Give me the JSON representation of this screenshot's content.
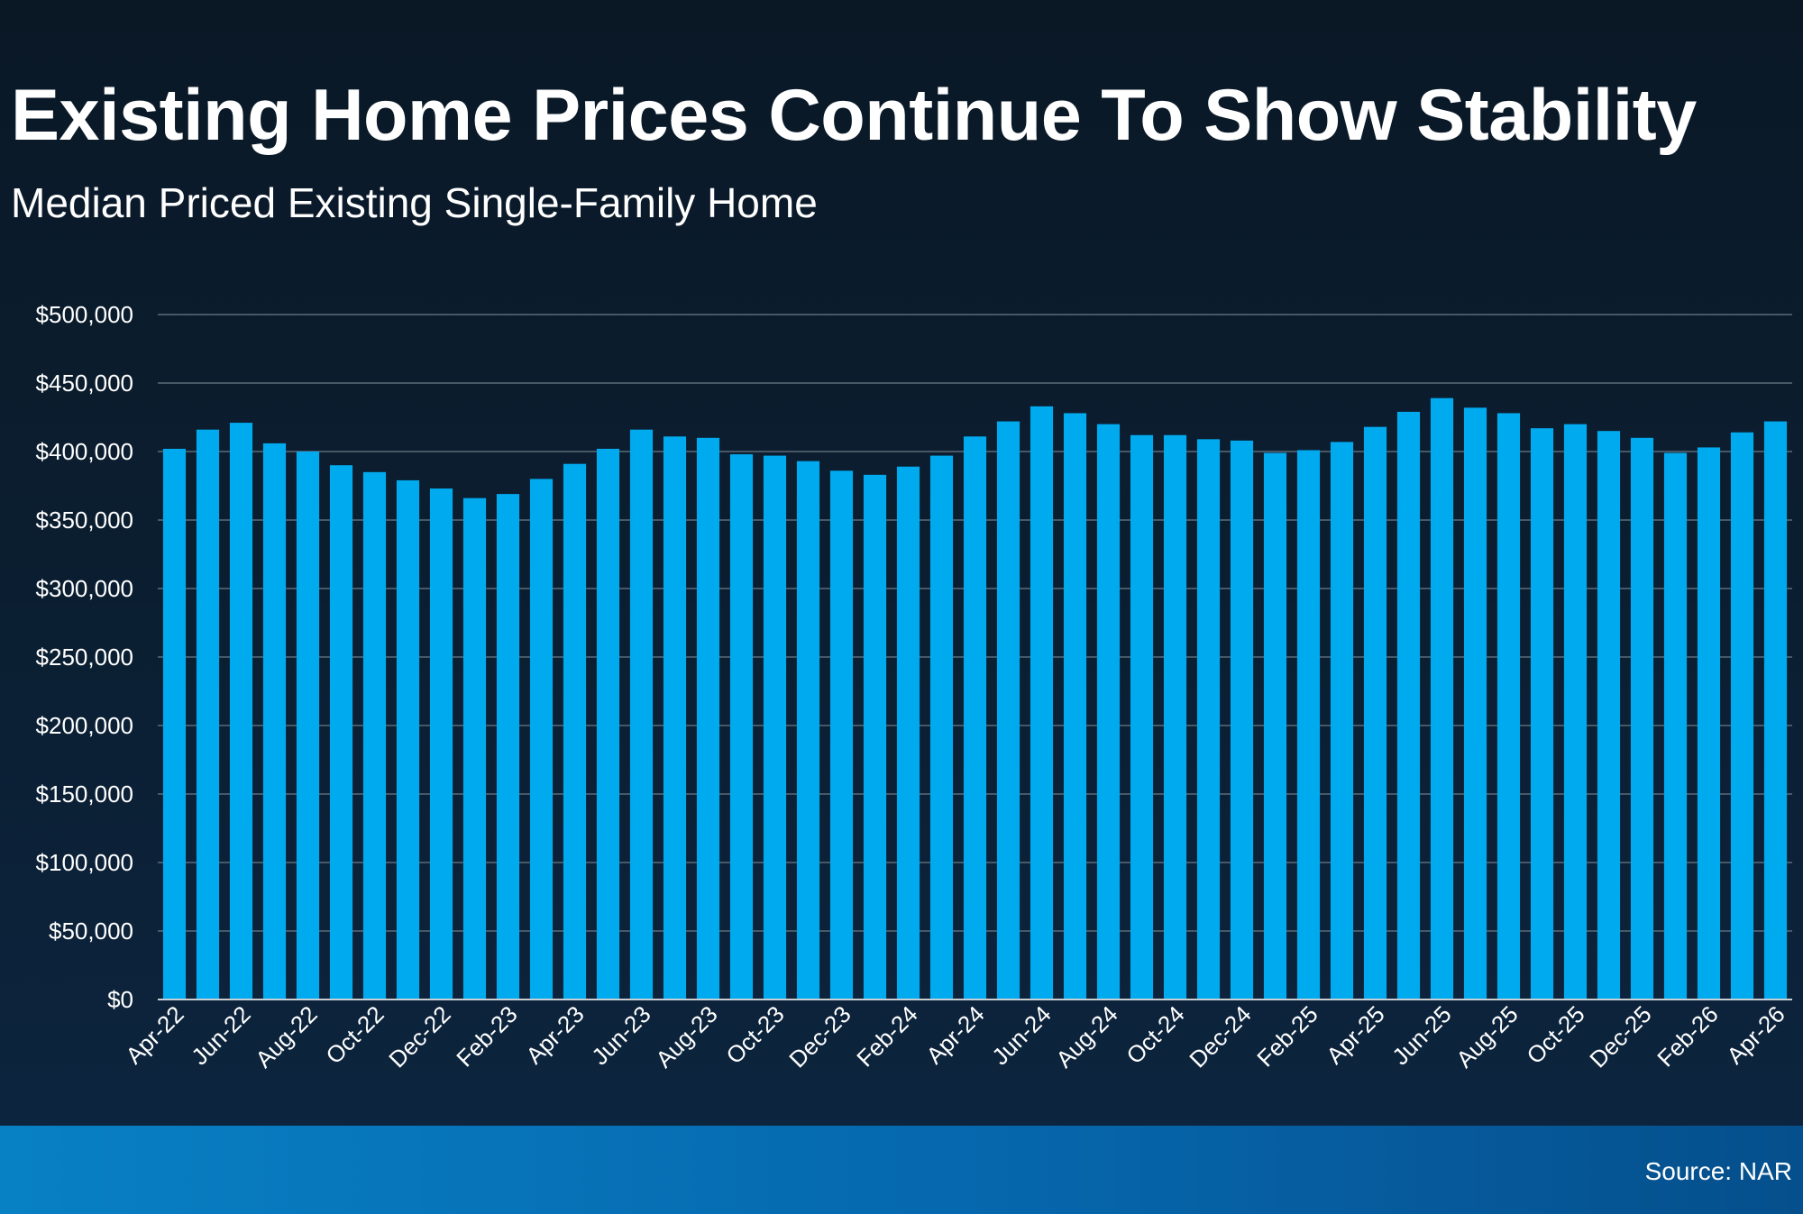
{
  "slide": {
    "title": "Existing Home Prices Continue To Show Stability",
    "subtitle": "Median Priced Existing Single-Family Home",
    "source": "Source: NAR"
  },
  "colors": {
    "bar": "#00aaef",
    "grid": "#5d6b78",
    "axis_line": "#c8ced4",
    "text": "#ffffff"
  },
  "chart_data": {
    "type": "bar",
    "title": "Existing Home Prices Continue To Show Stability",
    "subtitle": "Median Priced Existing Single-Family Home",
    "xlabel": "",
    "ylabel": "",
    "ylim": [
      0,
      500000
    ],
    "y_ticks": [
      0,
      50000,
      100000,
      150000,
      200000,
      250000,
      300000,
      350000,
      400000,
      450000,
      500000
    ],
    "y_tick_labels": [
      "$0",
      "$50,000",
      "$100,000",
      "$150,000",
      "$200,000",
      "$250,000",
      "$300,000",
      "$350,000",
      "$400,000",
      "$450,000",
      "$500,000"
    ],
    "grid": true,
    "categories": [
      "Apr-22",
      "May-22",
      "Jun-22",
      "Jul-22",
      "Aug-22",
      "Sep-22",
      "Oct-22",
      "Nov-22",
      "Dec-22",
      "Jan-23",
      "Feb-23",
      "Mar-23",
      "Apr-23",
      "May-23",
      "Jun-23",
      "Jul-23",
      "Aug-23",
      "Sep-23",
      "Oct-23",
      "Nov-23",
      "Dec-23",
      "Jan-24",
      "Feb-24",
      "Mar-24",
      "Apr-24",
      "May-24",
      "Jun-24",
      "Jul-24",
      "Aug-24",
      "Sep-24",
      "Oct-24",
      "Nov-24",
      "Dec-24",
      "Jan-25",
      "Feb-25",
      "Mar-25",
      "Apr-25",
      "May-25",
      "Jun-25",
      "Jul-25",
      "Aug-25",
      "Sep-25",
      "Oct-25",
      "Nov-25",
      "Dec-25",
      "Jan-26",
      "Feb-26",
      "Mar-26",
      "Apr-26"
    ],
    "x_tick_labels": [
      "Apr-22",
      "Jun-22",
      "Aug-22",
      "Oct-22",
      "Dec-22",
      "Feb-23",
      "Apr-23",
      "Jun-23",
      "Aug-23",
      "Oct-23",
      "Dec-23",
      "Feb-24",
      "Apr-24",
      "Jun-24",
      "Aug-24",
      "Oct-24",
      "Dec-24",
      "Feb-25",
      "Apr-25",
      "Jun-25",
      "Aug-25",
      "Oct-25",
      "Dec-25",
      "Feb-26",
      "Apr-26"
    ],
    "series": [
      {
        "values": [
          402000,
          416000,
          421000,
          406000,
          400000,
          390000,
          385000,
          379000,
          373000,
          366000,
          369000,
          380000,
          391000,
          402000,
          416000,
          411000,
          410000,
          398000,
          397000,
          393000,
          386000,
          383000,
          389000,
          397000,
          411000,
          422000,
          433000,
          428000,
          420000,
          412000,
          412000,
          409000,
          408000,
          399000,
          401000,
          407000,
          418000,
          429000,
          439000,
          432000,
          428000,
          417000,
          420000,
          415000,
          410000,
          399000,
          403000,
          414000,
          422000
        ]
      }
    ]
  }
}
